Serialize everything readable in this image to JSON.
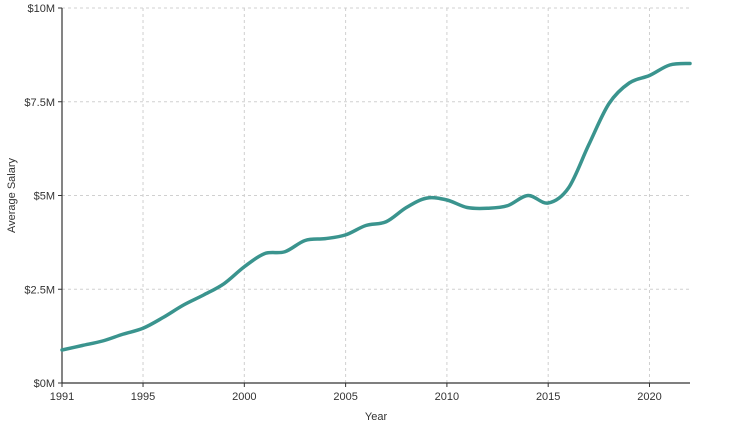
{
  "chart_data": {
    "type": "line",
    "xlabel": "Year",
    "ylabel": "Average Salary",
    "xlim": [
      1991,
      2022
    ],
    "ylim": [
      0,
      10
    ],
    "x_ticks": [
      {
        "value": 1991,
        "label": "1991"
      },
      {
        "value": 1995,
        "label": "1995"
      },
      {
        "value": 2000,
        "label": "2000"
      },
      {
        "value": 2005,
        "label": "2005"
      },
      {
        "value": 2010,
        "label": "2010"
      },
      {
        "value": 2015,
        "label": "2015"
      },
      {
        "value": 2020,
        "label": "2020"
      }
    ],
    "y_ticks": [
      {
        "value": 0,
        "label": "$0M"
      },
      {
        "value": 2.5,
        "label": "$2.5M"
      },
      {
        "value": 5,
        "label": "$5M"
      },
      {
        "value": 7.5,
        "label": "$7.5M"
      },
      {
        "value": 10,
        "label": "$10M"
      }
    ],
    "grid": true,
    "line_color": "#3a948e",
    "series": [
      {
        "x": [
          1991,
          1992,
          1993,
          1994,
          1995,
          1996,
          1997,
          1998,
          1999,
          2000,
          2001,
          2002,
          2003,
          2004,
          2005,
          2006,
          2007,
          2008,
          2009,
          2010,
          2011,
          2012,
          2013,
          2014,
          2015,
          2016,
          2017,
          2018,
          2019,
          2020,
          2021,
          2022
        ],
        "values": [
          0.88,
          1.0,
          1.12,
          1.3,
          1.46,
          1.75,
          2.08,
          2.35,
          2.65,
          3.1,
          3.45,
          3.5,
          3.8,
          3.85,
          3.95,
          4.2,
          4.3,
          4.68,
          4.93,
          4.88,
          4.68,
          4.66,
          4.73,
          5.0,
          4.8,
          5.2,
          6.35,
          7.45,
          8.0,
          8.2,
          8.48,
          8.52
        ]
      }
    ]
  }
}
